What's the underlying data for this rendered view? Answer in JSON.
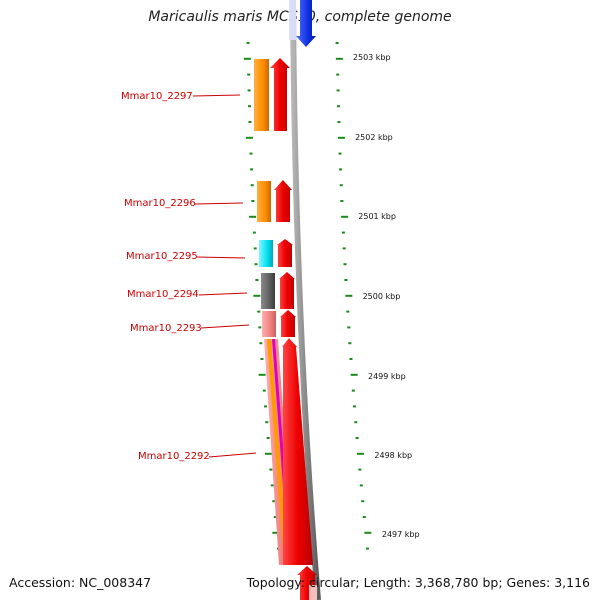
{
  "title": "Maricaulis maris MCS10, complete genome",
  "accession": "Accession: NC_008347",
  "summary": "Topology: circular; Length: 3,368,780 bp; Genes: 3,116",
  "colors": {
    "label_red": "#cc0000",
    "tick_green": "#1a8a1a",
    "backbone_grey": "#8a8a8a",
    "cds_red": "#ee0000",
    "gene_orange": "#ff8c00",
    "gene_cyan": "#00e0f0",
    "gene_dark_grey": "#5f5f5f",
    "gene_pink": "#f08080",
    "gene_magenta": "#e000c0",
    "upstream_blue": "#1030e0"
  },
  "scale_labels": [
    "2503 kbp",
    "2502 kbp",
    "2501 kbp",
    "2500 kbp",
    "2499 kbp",
    "2498 kbp",
    "2497 kbp"
  ],
  "genes": [
    {
      "name": "Mmar10_2297"
    },
    {
      "name": "Mmar10_2296"
    },
    {
      "name": "Mmar10_2295"
    },
    {
      "name": "Mmar10_2294"
    },
    {
      "name": "Mmar10_2293"
    },
    {
      "name": "Mmar10_2292"
    }
  ]
}
